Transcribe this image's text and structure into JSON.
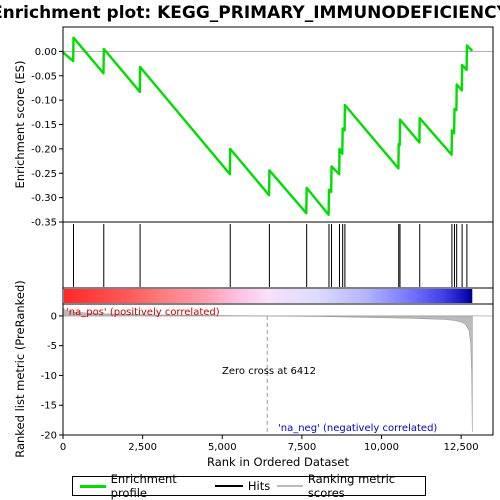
{
  "chart_data": [
    {
      "type": "line",
      "title": "Enrichment plot: KEGG_PRIMARY_IMMUNODEFICIENCY",
      "ylabel": "Enrichment score (ES)",
      "ylim": [
        -0.35,
        0.05
      ],
      "yticks": [
        "0.00",
        "-0.05",
        "-0.10",
        "-0.15",
        "-0.20",
        "-0.25",
        "-0.30",
        "-0.35"
      ],
      "ytick_values": [
        0.0,
        -0.05,
        -0.1,
        -0.15,
        -0.2,
        -0.25,
        -0.3,
        -0.35
      ],
      "xlim": [
        0,
        13500
      ],
      "hits": [
        330,
        1280,
        2420,
        5250,
        6480,
        7650,
        8350,
        8430,
        8680,
        8780,
        8850,
        10540,
        10580,
        11200,
        12210,
        12290,
        12360,
        12530,
        12680
      ],
      "series": [
        {
          "name": "Enrichment profile",
          "color": "#00dd00",
          "x": [
            0,
            320,
            330,
            1270,
            1280,
            2410,
            2420,
            5240,
            5250,
            6470,
            6480,
            7640,
            7650,
            8340,
            8350,
            8420,
            8430,
            8670,
            8680,
            8770,
            8780,
            8840,
            8850,
            10530,
            10540,
            10570,
            10580,
            11190,
            11200,
            12200,
            12210,
            12280,
            12290,
            12350,
            12360,
            12520,
            12530,
            12670,
            12680,
            12850
          ],
          "y": [
            -0.002,
            -0.02,
            0.028,
            -0.045,
            0.005,
            -0.083,
            -0.032,
            -0.252,
            -0.2,
            -0.295,
            -0.244,
            -0.332,
            -0.28,
            -0.335,
            -0.284,
            -0.288,
            -0.236,
            -0.252,
            -0.2,
            -0.21,
            -0.158,
            -0.162,
            -0.11,
            -0.24,
            -0.19,
            -0.192,
            -0.14,
            -0.187,
            -0.137,
            -0.212,
            -0.162,
            -0.168,
            -0.118,
            -0.12,
            -0.068,
            -0.08,
            -0.028,
            -0.038,
            0.012,
            0.001
          ]
        }
      ]
    },
    {
      "type": "area",
      "xlabel": "Rank in Ordered Dataset",
      "ylabel": "Ranked list metric (PreRanked)",
      "xlim": [
        0,
        13500
      ],
      "ylim": [
        -20,
        2
      ],
      "xticks": [
        "0",
        "2,500",
        "5,000",
        "7,500",
        "10,000",
        "12,500"
      ],
      "xtick_values": [
        0,
        2500,
        5000,
        7500,
        10000,
        12500
      ],
      "yticks": [
        "0",
        "-5",
        "-10",
        "-15",
        "-20"
      ],
      "ytick_values": [
        0,
        -5,
        -10,
        -15,
        -20
      ],
      "series": [
        {
          "name": "Ranking metric scores",
          "color": "#bbbbbb",
          "x": [
            0,
            50,
            200,
            500,
            1000,
            2000,
            3000,
            4000,
            5000,
            6000,
            6412,
            7000,
            8000,
            9000,
            10000,
            11000,
            11500,
            12000,
            12300,
            12500,
            12650,
            12750,
            12800,
            12830,
            12850
          ],
          "y": [
            1.3,
            1.0,
            0.75,
            0.55,
            0.4,
            0.25,
            0.15,
            0.1,
            0.05,
            0.02,
            0.0,
            -0.05,
            -0.1,
            -0.2,
            -0.3,
            -0.4,
            -0.5,
            -0.6,
            -0.75,
            -1.0,
            -1.5,
            -2.5,
            -4.5,
            -10.0,
            -19.5
          ]
        }
      ],
      "annotations": [
        {
          "text": "'na_pos' (positively correlated)",
          "color": "#cc0000"
        },
        {
          "text": "Zero cross at 6412",
          "color": "#000000"
        },
        {
          "text": "'na_neg' (negatively correlated)",
          "color": "#0000cc"
        }
      ],
      "zero_cross": 6412
    }
  ],
  "legend": {
    "items": [
      {
        "label": "Enrichment profile"
      },
      {
        "label": "Hits"
      },
      {
        "label": "Ranking metric scores"
      }
    ]
  }
}
